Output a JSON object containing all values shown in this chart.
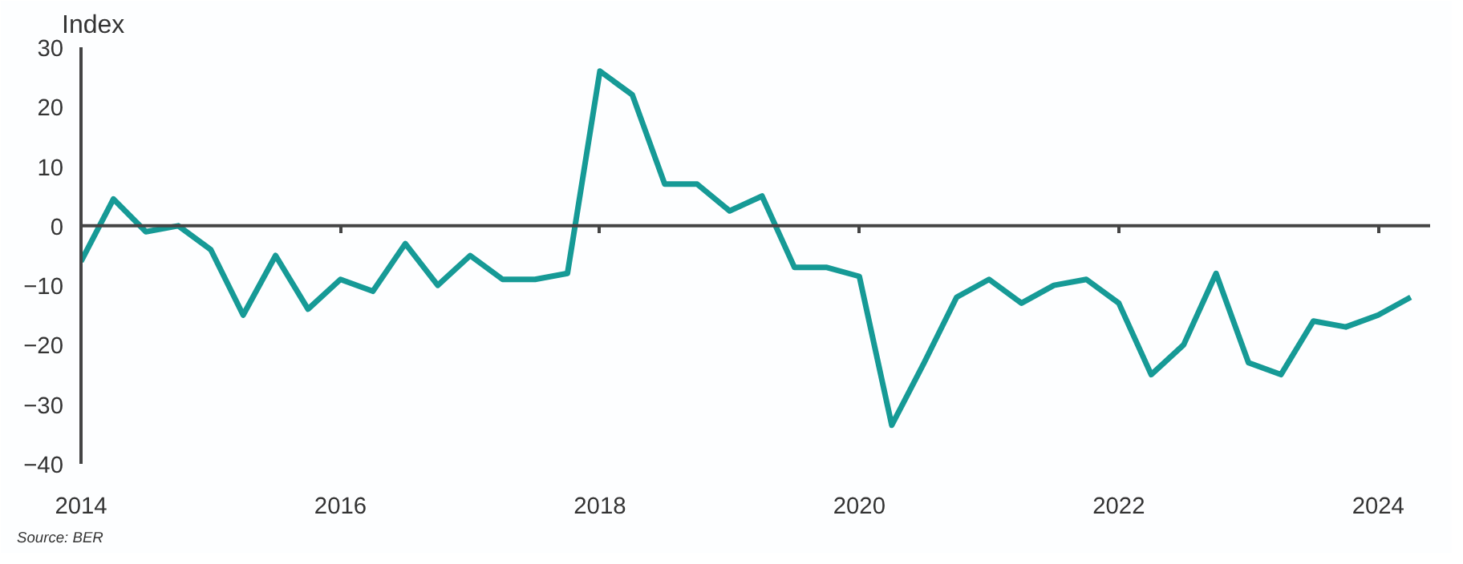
{
  "chart_data": {
    "type": "line",
    "ylabel": "Index",
    "x": [
      2014,
      2014.25,
      2014.5,
      2014.75,
      2015,
      2015.25,
      2015.5,
      2015.75,
      2016,
      2016.25,
      2016.5,
      2016.75,
      2017,
      2017.25,
      2017.5,
      2017.75,
      2018,
      2018.25,
      2018.5,
      2018.75,
      2019,
      2019.25,
      2019.5,
      2019.75,
      2020,
      2020.25,
      2020.5,
      2020.75,
      2021,
      2021.25,
      2021.5,
      2021.75,
      2022,
      2022.25,
      2022.5,
      2022.75,
      2023,
      2023.25,
      2023.5,
      2023.75,
      2024,
      2024.25
    ],
    "series": [
      {
        "color": "#169a96",
        "values": [
          -6,
          4.5,
          -1,
          0,
          -4,
          -15,
          -5,
          -14,
          -9,
          -11,
          -3,
          -10,
          -5,
          -9,
          -9,
          -8,
          26,
          22,
          7,
          7,
          2.5,
          5,
          -7,
          -7,
          -8.5,
          -33.5,
          -23,
          -12,
          -9,
          -13,
          -10,
          -9,
          -13,
          -25,
          -20,
          -8,
          -23,
          -25,
          -16,
          -17,
          -15,
          -12
        ]
      }
    ],
    "xlim": [
      2014,
      2024.4
    ],
    "xticks": [
      2014,
      2016,
      2018,
      2020,
      2022,
      2024
    ],
    "ylim": [
      -40,
      30
    ],
    "yticks": [
      -40,
      -30,
      -20,
      -10,
      0,
      10,
      20,
      30
    ],
    "ref_lines": [
      {
        "axis": "y",
        "value": 0,
        "color": "#444444"
      }
    ],
    "grid": false,
    "marker": "none",
    "line_style": "solid",
    "annotations": [
      "Source: BER"
    ]
  }
}
